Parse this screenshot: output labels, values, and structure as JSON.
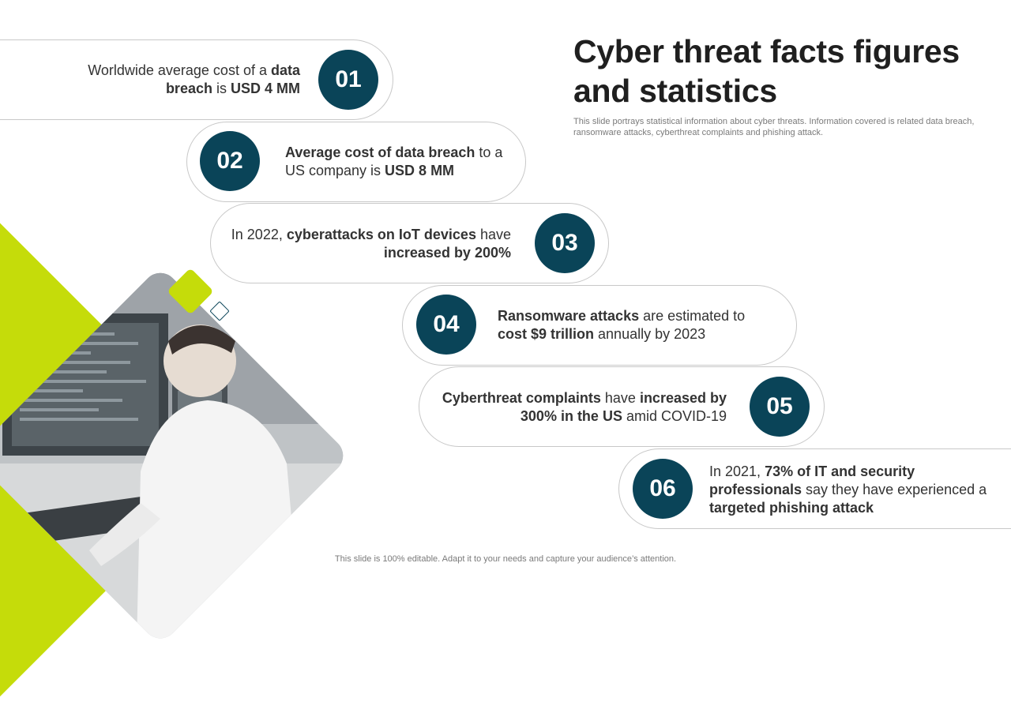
{
  "header": {
    "title": "Cyber threat facts figures and statistics",
    "subtitle": "This slide portrays statistical information about cyber threats. Information covered is related data breach, ransomware attacks, cyberthreat complaints and phishing attack."
  },
  "items": [
    {
      "number": "01",
      "parts": [
        {
          "text": "Worldwide average cost of a ",
          "bold": false
        },
        {
          "text": "data breach",
          "bold": true
        },
        {
          "text": " is ",
          "bold": false
        },
        {
          "text": "USD 4 MM",
          "bold": true
        }
      ]
    },
    {
      "number": "02",
      "parts": [
        {
          "text": "Average cost of data breach",
          "bold": true
        },
        {
          "text": " to a US company is ",
          "bold": false
        },
        {
          "text": "USD 8 MM",
          "bold": true
        }
      ]
    },
    {
      "number": "03",
      "parts": [
        {
          "text": "In 2022, ",
          "bold": false
        },
        {
          "text": "cyberattacks on IoT devices",
          "bold": true
        },
        {
          "text": " have ",
          "bold": false
        },
        {
          "text": "increased by 200%",
          "bold": true
        }
      ]
    },
    {
      "number": "04",
      "parts": [
        {
          "text": "Ransomware attacks",
          "bold": true
        },
        {
          "text": " are estimated to ",
          "bold": false
        },
        {
          "text": "cost $9 trillion",
          "bold": true
        },
        {
          "text": " annually  by 2023",
          "bold": false
        }
      ]
    },
    {
      "number": "05",
      "parts": [
        {
          "text": "Cyberthreat complaints",
          "bold": true
        },
        {
          "text": " have ",
          "bold": false
        },
        {
          "text": "increased by 300% in the US",
          "bold": true
        },
        {
          "text": " amid COVID-19",
          "bold": false
        }
      ]
    },
    {
      "number": "06",
      "parts": [
        {
          "text": "In 2021, ",
          "bold": false
        },
        {
          "text": "73% of IT and security professionals",
          "bold": true
        },
        {
          "text": " say they have experienced a ",
          "bold": false
        },
        {
          "text": "targeted phishing attack",
          "bold": true
        }
      ]
    }
  ],
  "footer": "This slide is 100% editable. Adapt it to your needs and capture your audience’s attention.",
  "colors": {
    "accent_dark": "#0a4458",
    "accent_lime": "#c5dc0a"
  }
}
